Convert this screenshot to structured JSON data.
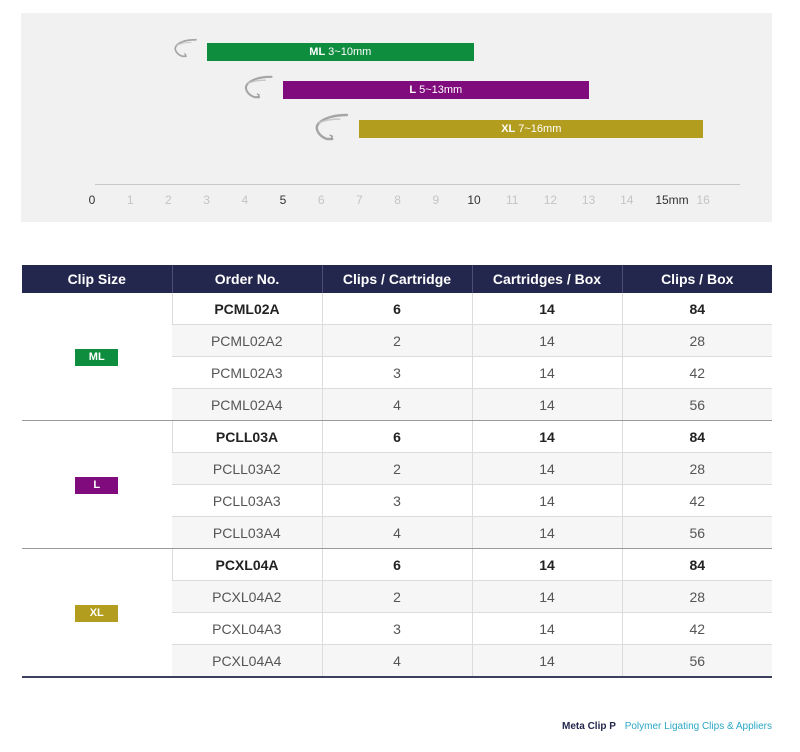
{
  "colors": {
    "ml": "#0f8d3f",
    "l": "#800b7c",
    "xl": "#b39d1e",
    "header": "#24274d",
    "brand": "#24274d",
    "tagline": "#2aa7c4"
  },
  "range_chart": {
    "bars": [
      {
        "key": "ml",
        "size": "ML",
        "range": "3~10mm",
        "from": 3,
        "to": 10,
        "icon": "clip-icon"
      },
      {
        "key": "l",
        "size": "L",
        "range": "5~13mm",
        "from": 5,
        "to": 13,
        "icon": "clip-icon"
      },
      {
        "key": "xl",
        "size": "XL",
        "range": "7~16mm",
        "from": 7,
        "to": 16,
        "icon": "clip-icon"
      }
    ],
    "ticks": [
      "0",
      "1",
      "2",
      "3",
      "4",
      "5",
      "6",
      "7",
      "8",
      "9",
      "10",
      "11",
      "12",
      "13",
      "14",
      "15mm",
      "16"
    ],
    "highlighted_ticks": [
      "0",
      "5",
      "10",
      "15mm"
    ]
  },
  "table": {
    "headers": [
      "Clip Size",
      "Order No.",
      "Clips / Cartridge",
      "Cartridges / Box",
      "Clips / Box"
    ],
    "groups": [
      {
        "size": "ML",
        "key": "ml",
        "rows": [
          {
            "order": "PCML02A",
            "clips_per_cartridge": "6",
            "cartridges_per_box": "14",
            "clips_per_box": "84"
          },
          {
            "order": "PCML02A2",
            "clips_per_cartridge": "2",
            "cartridges_per_box": "14",
            "clips_per_box": "28"
          },
          {
            "order": "PCML02A3",
            "clips_per_cartridge": "3",
            "cartridges_per_box": "14",
            "clips_per_box": "42"
          },
          {
            "order": "PCML02A4",
            "clips_per_cartridge": "4",
            "cartridges_per_box": "14",
            "clips_per_box": "56"
          }
        ]
      },
      {
        "size": "L",
        "key": "l",
        "rows": [
          {
            "order": "PCLL03A",
            "clips_per_cartridge": "6",
            "cartridges_per_box": "14",
            "clips_per_box": "84"
          },
          {
            "order": "PCLL03A2",
            "clips_per_cartridge": "2",
            "cartridges_per_box": "14",
            "clips_per_box": "28"
          },
          {
            "order": "PCLL03A3",
            "clips_per_cartridge": "3",
            "cartridges_per_box": "14",
            "clips_per_box": "42"
          },
          {
            "order": "PCLL03A4",
            "clips_per_cartridge": "4",
            "cartridges_per_box": "14",
            "clips_per_box": "56"
          }
        ]
      },
      {
        "size": "XL",
        "key": "xl",
        "rows": [
          {
            "order": "PCXL04A",
            "clips_per_cartridge": "6",
            "cartridges_per_box": "14",
            "clips_per_box": "84"
          },
          {
            "order": "PCXL04A2",
            "clips_per_cartridge": "2",
            "cartridges_per_box": "14",
            "clips_per_box": "28"
          },
          {
            "order": "PCXL04A3",
            "clips_per_cartridge": "3",
            "cartridges_per_box": "14",
            "clips_per_box": "42"
          },
          {
            "order": "PCXL04A4",
            "clips_per_cartridge": "4",
            "cartridges_per_box": "14",
            "clips_per_box": "56"
          }
        ]
      }
    ]
  },
  "footer": {
    "brand": "Meta Clip P",
    "tagline": "Polymer Ligating Clips & Appliers"
  }
}
